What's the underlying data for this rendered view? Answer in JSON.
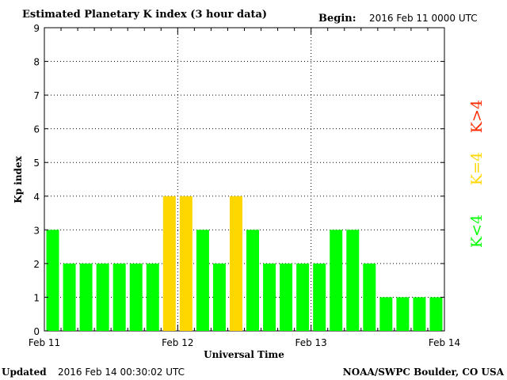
{
  "chart_data": {
    "type": "bar",
    "title": "Estimated Planetary K index (3 hour data)",
    "begin_label": "Begin:",
    "begin_value": "2016 Feb 11 0000 UTC",
    "xlabel": "Universal Time",
    "ylabel": "Kp index",
    "ylim": [
      0,
      9
    ],
    "yticks": [
      "0",
      "1",
      "2",
      "3",
      "4",
      "5",
      "6",
      "7",
      "8",
      "9"
    ],
    "xticks": [
      "Feb 11",
      "Feb 12",
      "Feb 13",
      "Feb 14"
    ],
    "values": [
      3,
      2,
      2,
      2,
      2,
      2,
      2,
      4,
      4,
      3,
      2,
      4,
      3,
      2,
      2,
      2,
      2,
      3,
      3,
      2,
      1,
      1,
      1,
      1
    ],
    "interval_hours": 3,
    "grid": true,
    "colors": {
      "low": "#00ff00",
      "equal": "#ffd700",
      "high": "#ff2a00"
    },
    "legend": [
      {
        "label": "K<4",
        "color": "#00ff00"
      },
      {
        "label": "K=4",
        "color": "#ffd700"
      },
      {
        "label": "K>4",
        "color": "#ff2a00"
      }
    ],
    "legend_placement": "right"
  },
  "footer": {
    "updated_label": "Updated",
    "updated_value": "2016 Feb 14 00:30:02 UTC",
    "source": "NOAA/SWPC Boulder, CO USA"
  }
}
